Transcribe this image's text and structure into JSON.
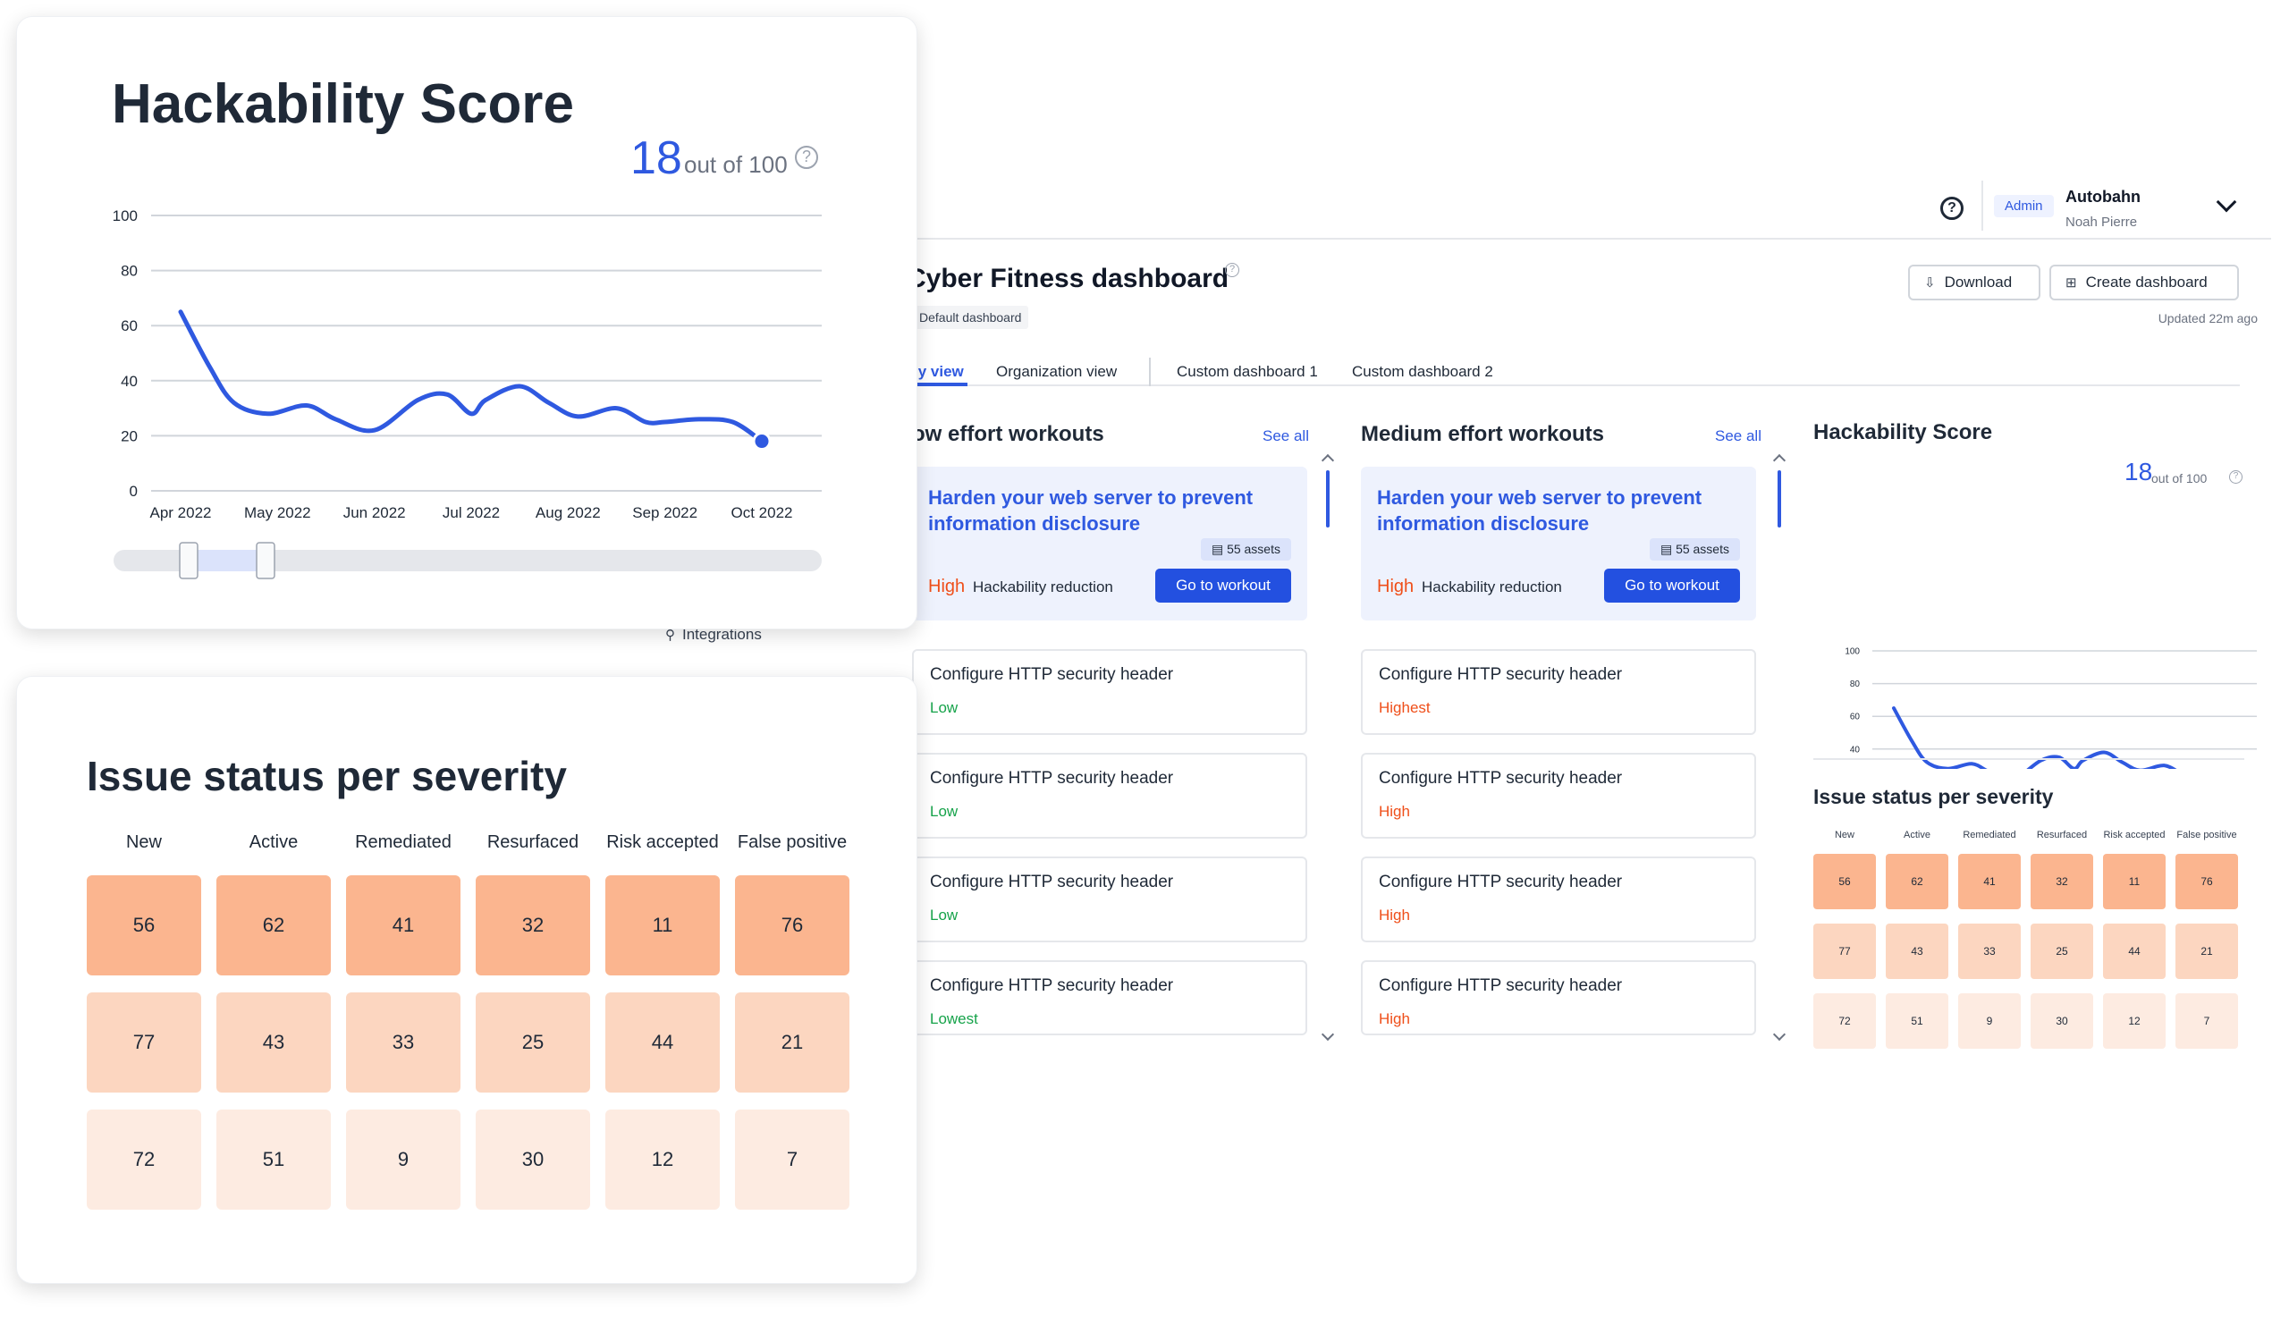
{
  "header": {
    "org_name": "Autobahn",
    "user_name": "Noah Pierre",
    "role_badge": "Admin",
    "help_icon": "help-circle-icon",
    "dropdown_icon": "chevron-down-icon"
  },
  "dashboard": {
    "title": "Cyber Fitness dashboard",
    "default_badge": "Default dashboard",
    "download_label": "Download",
    "create_label": "Create dashboard",
    "updated": "Updated 22m ago",
    "tabs": [
      "My view",
      "Organization view",
      "Custom dashboard 1",
      "Custom dashboard 2"
    ],
    "tabs_visible": [
      "ly view",
      "Organization view",
      "Custom dashboard 1",
      "Custom dashboard 2"
    ],
    "active_tab": 0
  },
  "sidebar_fragment": {
    "integrations": "Integrations"
  },
  "workouts": [
    {
      "title": "ow effort workouts",
      "see_all": "See all",
      "featured": {
        "title": "Harden your web server to prevent information disclosure",
        "assets": "55 assets",
        "impact": "High",
        "impact_label": "Hackability reduction",
        "button": "Go to workout"
      },
      "items": [
        {
          "title": "Configure HTTP security header",
          "severity": "Low"
        },
        {
          "title": "Configure HTTP security header",
          "severity": "Low"
        },
        {
          "title": "Configure HTTP security header",
          "severity": "Low"
        },
        {
          "title": "Configure HTTP security header",
          "severity": "Lowest"
        }
      ]
    },
    {
      "title": "Medium effort workouts",
      "see_all": "See all",
      "featured": {
        "title": "Harden your web server to prevent information disclosure",
        "assets": "55 assets",
        "impact": "High",
        "impact_label": "Hackability reduction",
        "button": "Go to workout"
      },
      "items": [
        {
          "title": "Configure HTTP security header",
          "severity": "Highest"
        },
        {
          "title": "Configure HTTP security header",
          "severity": "High"
        },
        {
          "title": "Configure HTTP security header",
          "severity": "High"
        },
        {
          "title": "Configure HTTP security header",
          "severity": "High"
        }
      ]
    }
  ],
  "severity_colors": {
    "Low": "#16a34a",
    "Lowest": "#16a34a",
    "High": "#ef4f1a",
    "Highest": "#ef4f1a"
  },
  "hackability": {
    "title": "Hackability Score",
    "score": "18",
    "out_of": "out of 100",
    "accent": "#2f59e0"
  },
  "issue_status": {
    "title": "Issue status per severity",
    "columns": [
      "New",
      "Active",
      "Remediated",
      "Resurfaced",
      "Risk accepted",
      "False positive"
    ],
    "rows": [
      [
        56,
        62,
        41,
        32,
        11,
        76
      ],
      [
        77,
        43,
        33,
        25,
        44,
        21
      ],
      [
        72,
        51,
        9,
        30,
        12,
        7
      ]
    ],
    "row_colors": [
      "#fbb58f",
      "#fcd6c0",
      "#fdebe1"
    ]
  },
  "chart_data": {
    "type": "line",
    "title": "Hackability Score",
    "x_tick_labels": [
      "Apr 2022",
      "May 2022",
      "Jun 2022",
      "Jul 2022",
      "Aug 2022",
      "Sep 2022",
      "Oct 2022"
    ],
    "y_tick_labels": [
      "0",
      "20",
      "40",
      "60",
      "80",
      "100"
    ],
    "ylim": [
      0,
      100
    ],
    "x": [
      0,
      0.3,
      0.55,
      0.9,
      1.3,
      1.6,
      2.0,
      2.45,
      2.75,
      3.0,
      3.15,
      3.5,
      3.8,
      4.1,
      4.5,
      4.8,
      5.0,
      5.35,
      5.7,
      6.0
    ],
    "values": [
      65,
      45,
      32,
      28,
      31,
      26,
      22,
      33,
      35,
      28,
      33,
      38,
      32,
      27,
      30,
      25,
      25,
      26,
      25,
      18
    ],
    "grid": true,
    "line_color": "#2f59e0",
    "range_slider": true
  }
}
